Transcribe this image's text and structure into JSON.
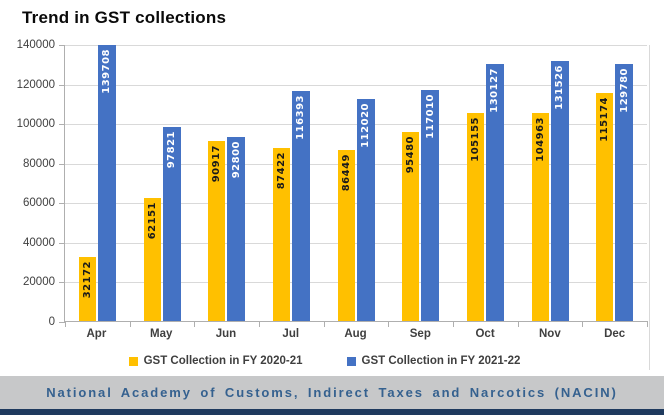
{
  "title": "Trend in GST collections",
  "chart_data": {
    "type": "bar",
    "title": "Trend in GST collections",
    "categories": [
      "Apr",
      "May",
      "Jun",
      "Jul",
      "Aug",
      "Sep",
      "Oct",
      "Nov",
      "Dec"
    ],
    "series": [
      {
        "name": "GST Collection in FY 2020-21",
        "color": "#FFC000",
        "label_color": "#1a1a1a",
        "values": [
          32172,
          62151,
          90917,
          87422,
          86449,
          95480,
          105155,
          104963,
          115174
        ]
      },
      {
        "name": "GST Collection in FY 2021-22",
        "color": "#4472C4",
        "label_color": "#ffffff",
        "values": [
          139708,
          97821,
          92800,
          116393,
          112020,
          117010,
          130127,
          131526,
          129780
        ]
      }
    ],
    "xlabel": "",
    "ylabel": "",
    "ylim": [
      0,
      140000
    ],
    "ytick_step": 20000,
    "grid": true,
    "legend_position": "bottom",
    "bar_value_labels": "inside-top-rotated"
  },
  "footer": {
    "text": "National Academy of Customs, Indirect Taxes and Narcotics (NACIN)",
    "bg_color": "#c7c8c9",
    "text_color": "#35618f",
    "bottom_bar_color": "#1f3a5e"
  }
}
